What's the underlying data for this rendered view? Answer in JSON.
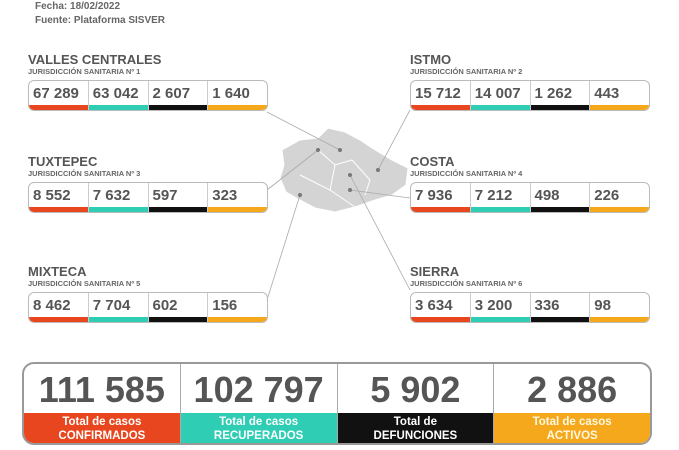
{
  "header": {
    "fecha": "Fecha: 18/02/2022",
    "fuente": "Fuente: Plataforma SISVER"
  },
  "colors": {
    "confirmados": "#e8461e",
    "recuperados": "#2fcdb4",
    "defunciones": "#111111",
    "activos": "#f5a81c"
  },
  "regions": [
    {
      "name": "VALLES CENTRALES",
      "sub": "JURISDICCIÓN SANITARIA Nº 1",
      "values": [
        "67 289",
        "63 042",
        "2 607",
        "1 640"
      ]
    },
    {
      "name": "ISTMO",
      "sub": "JURISDICCIÓN SANITARIA Nº 2",
      "values": [
        "15 712",
        "14 007",
        "1 262",
        "443"
      ]
    },
    {
      "name": "TUXTEPEC",
      "sub": "JURISDICCIÓN SANITARIA Nº 3",
      "values": [
        "8 552",
        "7 632",
        "597",
        "323"
      ]
    },
    {
      "name": "COSTA",
      "sub": "JURISDICCIÓN SANITARIA Nº 4",
      "values": [
        "7 936",
        "7 212",
        "498",
        "226"
      ]
    },
    {
      "name": "MIXTECA",
      "sub": "JURISDICCIÓN SANITARIA Nº 5",
      "values": [
        "8 462",
        "7 704",
        "602",
        "156"
      ]
    },
    {
      "name": "SIERRA",
      "sub": "JURISDICCIÓN SANITARIA Nº 6",
      "values": [
        "3 634",
        "3 200",
        "336",
        "98"
      ]
    }
  ],
  "totals": [
    {
      "value": "111 585",
      "l1": "Total de casos",
      "l2": "CONFIRMADOS"
    },
    {
      "value": "102 797",
      "l1": "Total de casos",
      "l2": "RECUPERADOS"
    },
    {
      "value": "5 902",
      "l1": "Total de",
      "l2": "DEFUNCIONES"
    },
    {
      "value": "2 886",
      "l1": "Total de casos",
      "l2": "ACTIVOS"
    }
  ]
}
